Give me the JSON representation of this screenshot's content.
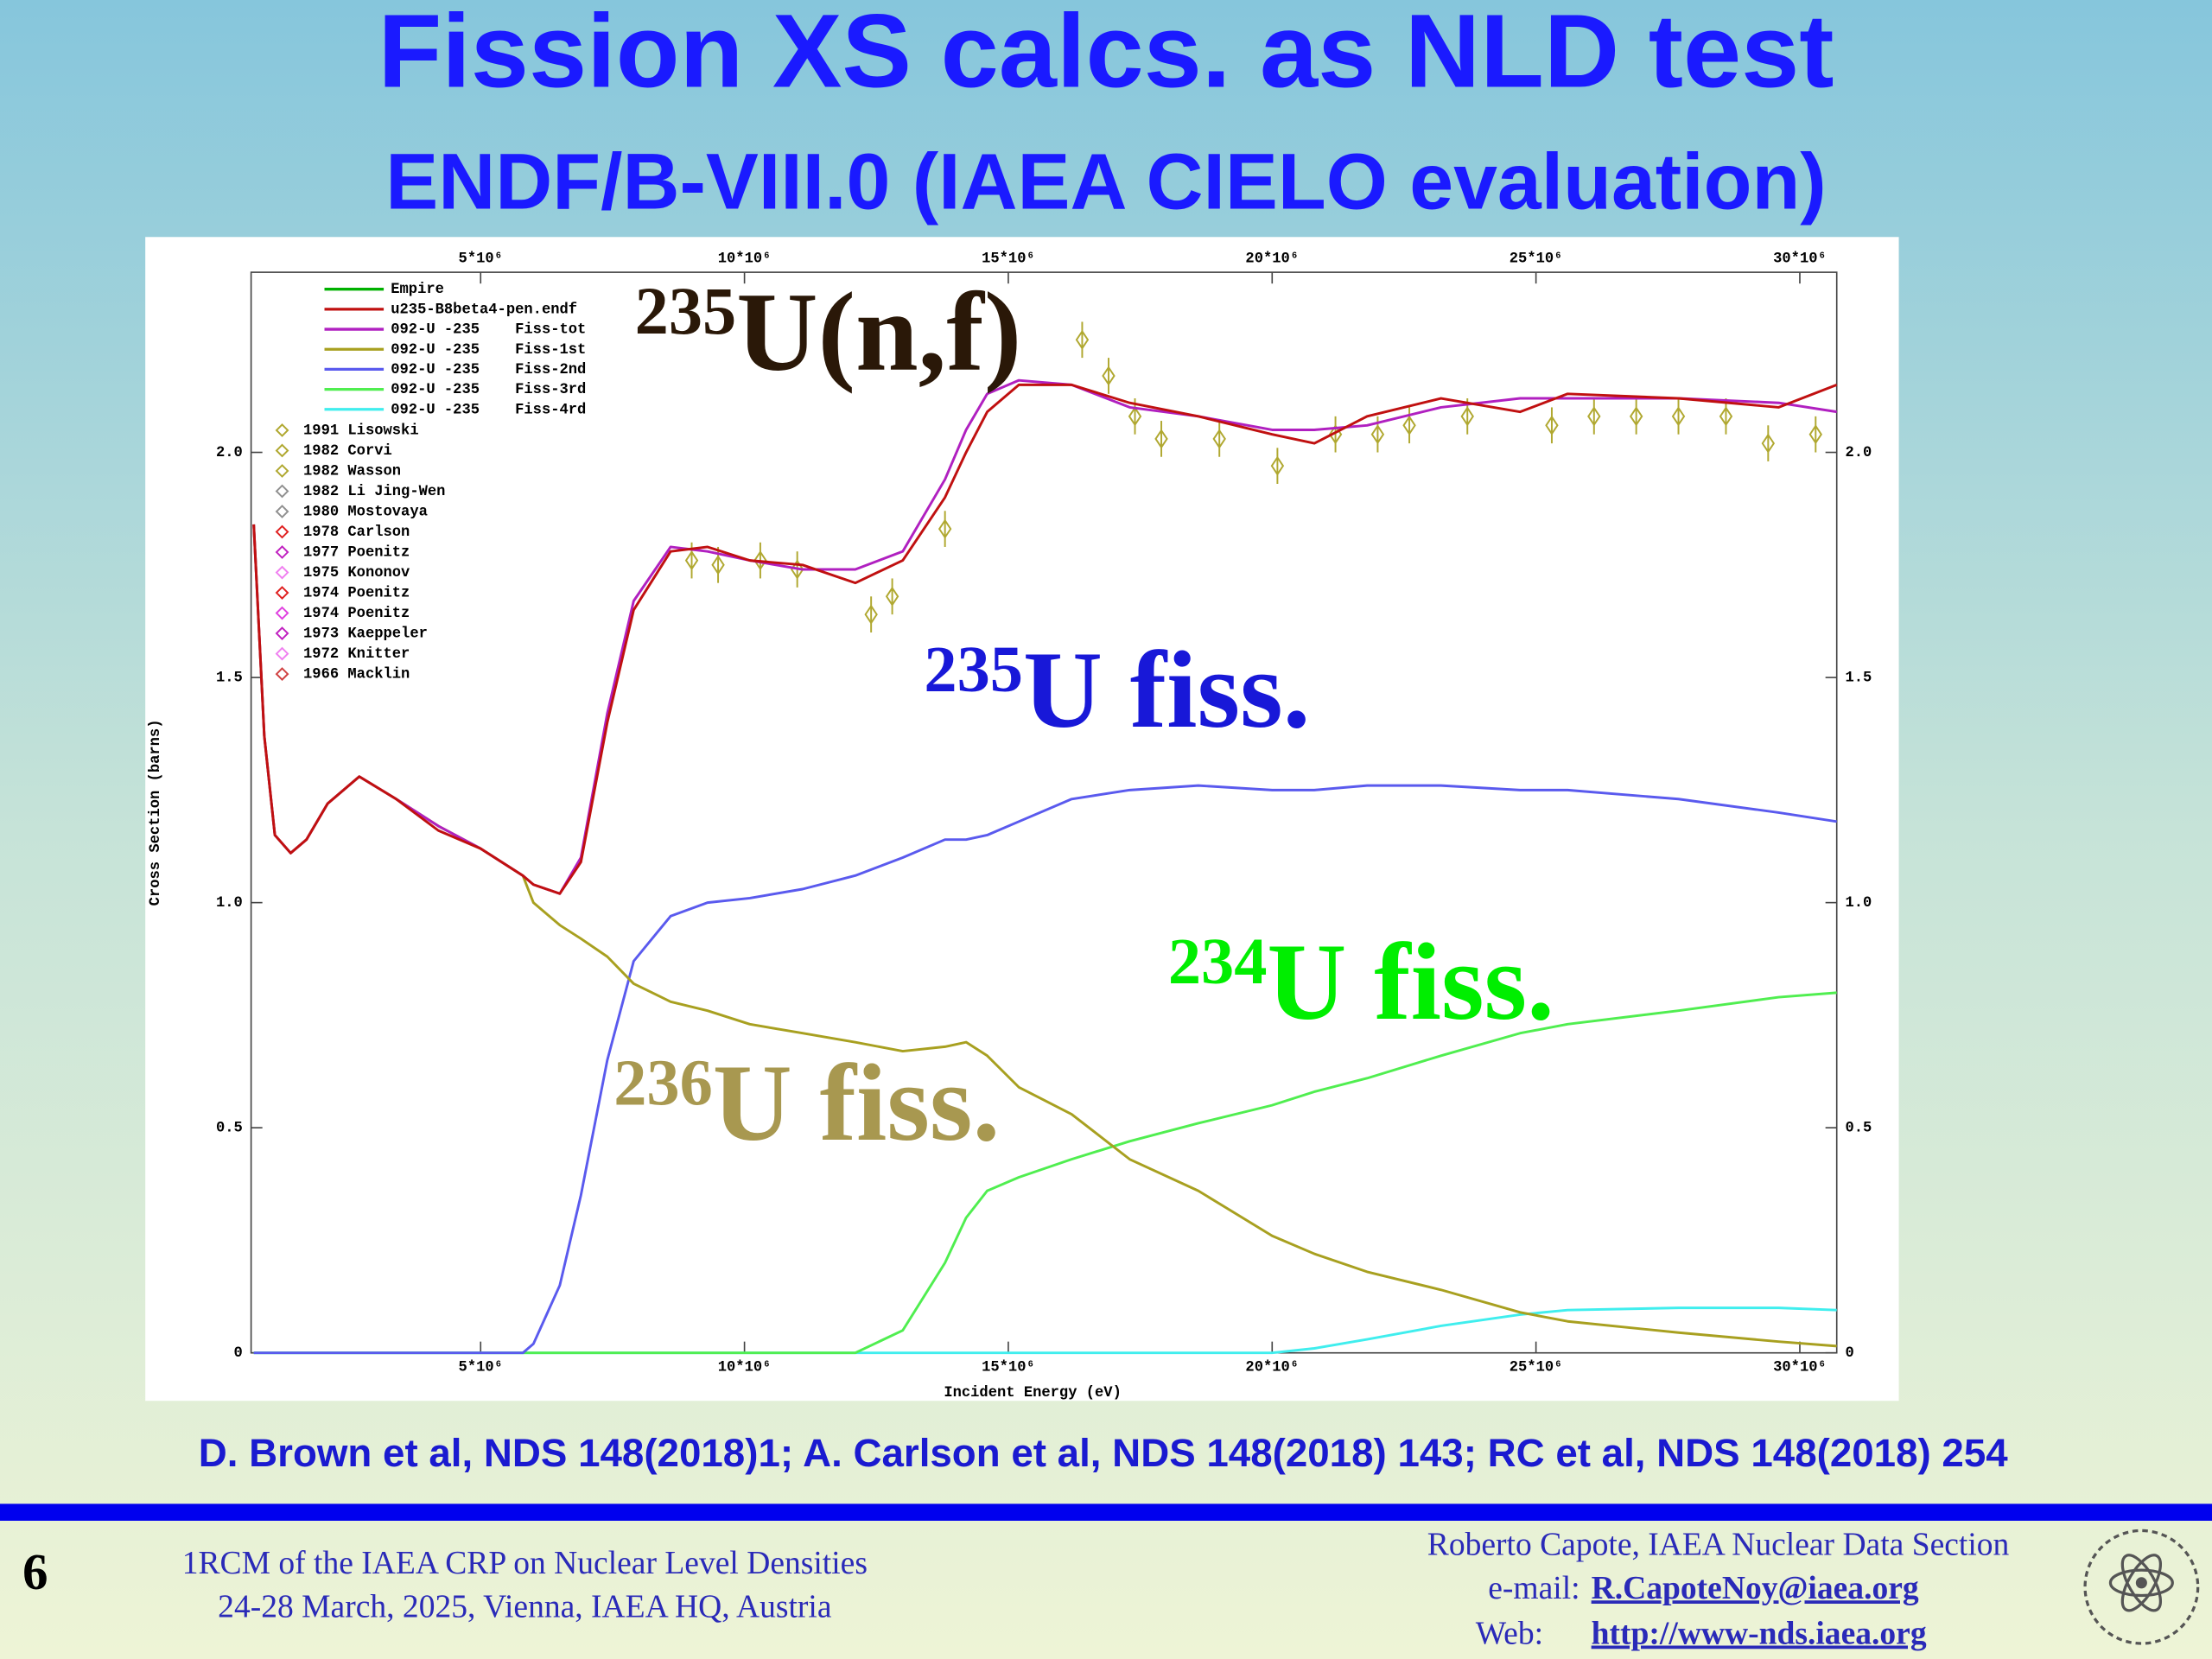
{
  "header": {
    "title": "Fission XS calcs. as NLD test",
    "subtitle": "ENDF/B-VIII.0 (IAEA CIELO evaluation)"
  },
  "chart_data": {
    "type": "line",
    "xlabel": "Incident Energy (eV)",
    "ylabel": "Cross Section (barns)",
    "xlim": [
      650000,
      30700000
    ],
    "xticks": [
      {
        "value": 5000000,
        "label": "5*10⁶"
      },
      {
        "value": 10000000,
        "label": "10*10⁶"
      },
      {
        "value": 15000000,
        "label": "15*10⁶"
      },
      {
        "value": 20000000,
        "label": "20*10⁶"
      },
      {
        "value": 25000000,
        "label": "25*10⁶"
      },
      {
        "value": 30000000,
        "label": "30*10⁶"
      }
    ],
    "ylim": [
      0,
      2.4
    ],
    "yticks": [
      0,
      0.5,
      {
        "value": 1,
        "label": "1.0"
      },
      1.5,
      {
        "value": 2,
        "label": "2.0"
      }
    ],
    "x": [
      700000,
      900000,
      1100000,
      1400000,
      1700000,
      2100000,
      2700000,
      3400000,
      4200000,
      5000000,
      5800000,
      6000000,
      6500000,
      6900000,
      7400000,
      7900000,
      8600000,
      9300000,
      10100000,
      11100000,
      12100000,
      13000000,
      13800000,
      14200000,
      14600000,
      15200000,
      16200000,
      17300000,
      18600000,
      20000000,
      20800000,
      21800000,
      23200000,
      24700000,
      25600000,
      27700000,
      29600000,
      30700000
    ],
    "series": [
      {
        "name": "Empire",
        "color": "#00b000",
        "values": [
          null,
          null,
          null,
          null,
          null,
          null,
          null,
          null,
          null,
          null,
          null,
          null,
          null,
          null,
          null,
          null,
          null,
          null,
          null,
          null,
          null,
          null,
          null,
          null,
          null,
          null,
          null,
          null,
          null,
          null,
          null,
          null,
          null,
          null,
          null,
          null,
          null,
          null
        ]
      },
      {
        "name": "u235-B8beta4-pen.endf",
        "color": "#c01010",
        "values": [
          1.84,
          1.37,
          1.15,
          1.11,
          1.14,
          1.22,
          1.28,
          1.23,
          1.16,
          1.12,
          1.06,
          1.04,
          1.02,
          1.09,
          1.4,
          1.65,
          1.78,
          1.79,
          1.76,
          1.75,
          1.71,
          1.76,
          1.9,
          2.0,
          2.09,
          2.15,
          2.15,
          2.11,
          2.08,
          2.04,
          2.02,
          2.08,
          2.12,
          2.09,
          2.13,
          2.12,
          2.1,
          2.15
        ]
      },
      {
        "name": "092-U -235    Fiss-tot",
        "color": "#b020c0",
        "values": [
          1.84,
          1.37,
          1.15,
          1.11,
          1.14,
          1.22,
          1.28,
          1.23,
          1.17,
          1.12,
          1.06,
          1.04,
          1.02,
          1.1,
          1.42,
          1.67,
          1.79,
          1.78,
          1.76,
          1.74,
          1.74,
          1.78,
          1.94,
          2.05,
          2.13,
          2.16,
          2.15,
          2.1,
          2.08,
          2.05,
          2.05,
          2.06,
          2.1,
          2.12,
          2.12,
          2.12,
          2.11,
          2.09
        ]
      },
      {
        "name": "092-U -235    Fiss-1st",
        "color": "#a8a020",
        "values": [
          1.84,
          1.37,
          1.15,
          1.11,
          1.14,
          1.22,
          1.28,
          1.23,
          1.17,
          1.12,
          1.06,
          1.0,
          0.95,
          0.92,
          0.88,
          0.82,
          0.78,
          0.76,
          0.73,
          0.71,
          0.69,
          0.67,
          0.68,
          0.69,
          0.66,
          0.59,
          0.53,
          0.43,
          0.36,
          0.26,
          0.22,
          0.18,
          0.14,
          0.09,
          0.07,
          0.045,
          0.025,
          0.015
        ]
      },
      {
        "name": "092-U -235    Fiss-2nd",
        "color": "#5a5aee",
        "values": [
          0,
          0,
          0,
          0,
          0,
          0,
          0,
          0,
          0,
          0,
          0,
          0.02,
          0.15,
          0.35,
          0.65,
          0.87,
          0.97,
          1.0,
          1.01,
          1.03,
          1.06,
          1.1,
          1.14,
          1.14,
          1.15,
          1.18,
          1.23,
          1.25,
          1.26,
          1.25,
          1.25,
          1.26,
          1.26,
          1.25,
          1.25,
          1.23,
          1.2,
          1.18
        ]
      },
      {
        "name": "092-U -235    Fiss-3rd",
        "color": "#50ee50",
        "values": [
          0,
          0,
          0,
          0,
          0,
          0,
          0,
          0,
          0,
          0,
          0,
          0,
          0,
          0,
          0,
          0,
          0,
          0,
          0,
          0,
          0,
          0.05,
          0.2,
          0.3,
          0.36,
          0.39,
          0.43,
          0.47,
          0.51,
          0.55,
          0.58,
          0.61,
          0.66,
          0.71,
          0.73,
          0.76,
          0.79,
          0.8
        ]
      },
      {
        "name": "092-U -235    Fiss-4rd",
        "color": "#40eeee",
        "values": [
          0,
          0,
          0,
          0,
          0,
          0,
          0,
          0,
          0,
          0,
          0,
          0,
          0,
          0,
          0,
          0,
          0,
          0,
          0,
          0,
          0,
          0,
          0,
          0,
          0,
          0,
          0,
          0,
          0,
          0,
          0.01,
          0.03,
          0.06,
          0.085,
          0.095,
          0.1,
          0.1,
          0.095
        ]
      }
    ],
    "experiments": [
      {
        "name": "1991 Lisowski",
        "color": "#b0a830",
        "x": [
          9000000,
          9500000,
          10300000,
          11000000,
          12400000,
          12800000,
          13800000,
          16400000,
          16900000,
          17400000,
          17900000,
          19000000,
          20100000,
          21200000,
          22000000,
          22600000,
          23700000,
          25300000,
          26100000,
          26900000,
          27700000,
          28600000,
          29400000,
          30300000
        ],
        "values": [
          1.76,
          1.75,
          1.76,
          1.74,
          1.64,
          1.68,
          1.83,
          2.25,
          2.17,
          2.08,
          2.03,
          2.03,
          1.97,
          2.04,
          2.04,
          2.06,
          2.08,
          2.06,
          2.08,
          2.08,
          2.08,
          2.08,
          2.02,
          2.04
        ],
        "errors": [
          0.04,
          0.04,
          0.04,
          0.04,
          0.04,
          0.04,
          0.04,
          0.04,
          0.04,
          0.04,
          0.04,
          0.04,
          0.04,
          0.04,
          0.04,
          0.04,
          0.04,
          0.04,
          0.04,
          0.04,
          0.04,
          0.04,
          0.04,
          0.04
        ]
      },
      {
        "name": "1982 Corvi",
        "color": "#b0a830"
      },
      {
        "name": "1982 Wasson",
        "color": "#b0a830"
      },
      {
        "name": "1982 Li Jing-Wen",
        "color": "#909090"
      },
      {
        "name": "1980 Mostovaya",
        "color": "#909090"
      },
      {
        "name": "1978 Carlson",
        "color": "#e02020"
      },
      {
        "name": "1977 Poenitz",
        "color": "#c020c0"
      },
      {
        "name": "1975 Kononov",
        "color": "#f080f0"
      },
      {
        "name": "1974 Poenitz",
        "color": "#e02020"
      },
      {
        "name": "1974 Poenitz",
        "color": "#e040e0"
      },
      {
        "name": "1973 Kaeppeler",
        "color": "#c020c0"
      },
      {
        "name": "1972 Knitter",
        "color": "#f080f0"
      },
      {
        "name": "1966 Macklin",
        "color": "#d04040"
      }
    ],
    "annotations": [
      {
        "mass": "235",
        "text": "U(n,f)",
        "color": "#2a1808"
      },
      {
        "mass": "235",
        "text": "U fiss.",
        "color": "#1818d8"
      },
      {
        "mass": "234",
        "text": "U fiss.",
        "color": "#00ee00"
      },
      {
        "mass": "236",
        "text": "U fiss.",
        "color": "#a89850"
      }
    ]
  },
  "references": "D. Brown et al, NDS 148(2018)1;  A. Carlson et al, NDS 148(2018) 143;  RC et al, NDS 148(2018) 254",
  "footer": {
    "page": "6",
    "event": [
      "1RCM of the IAEA CRP on Nuclear Level Densities",
      "24-28 March, 2025, Vienna, IAEA HQ, Austria"
    ],
    "author": "Roberto Capote, IAEA Nuclear Data Section",
    "email_label": "e-mail:",
    "email": "R.CapoteNoy@iaea.org",
    "web_label": "Web:",
    "web": "http://www-nds.iaea.org"
  }
}
